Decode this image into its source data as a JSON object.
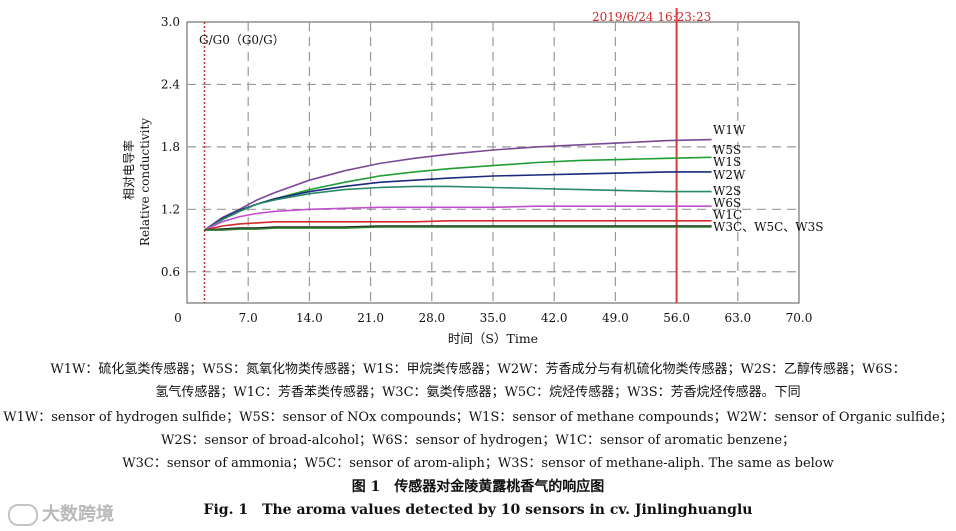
{
  "chart_data": {
    "type": "line",
    "timestamp": "2019/6/24 16:23:23",
    "y_corner_label": "G/G0（G0/G）",
    "ylabel_cn": "相对电导率",
    "ylabel_en": "Relative conductivity",
    "xlabel": "时间（S）Time",
    "xlim": [
      0,
      70
    ],
    "ylim": [
      0.3,
      3.0
    ],
    "x_ticks": [
      "7.0",
      "14.0",
      "21.0",
      "28.0",
      "35.0",
      "42.0",
      "49.0",
      "56.0",
      "63.0",
      "70.0"
    ],
    "y_ticks": [
      "0.6",
      "1.2",
      "1.8",
      "2.4",
      "3.0"
    ],
    "origin_label": "0",
    "grid": true,
    "marker_line_x": 56,
    "start_line_x": 2,
    "x": [
      2,
      4,
      6,
      8,
      10,
      14,
      18,
      22,
      26,
      30,
      35,
      40,
      45,
      50,
      55,
      60
    ],
    "series": [
      {
        "name": "W1W",
        "color": "#7b4a96",
        "values": [
          1.0,
          1.12,
          1.2,
          1.29,
          1.36,
          1.48,
          1.57,
          1.64,
          1.69,
          1.73,
          1.77,
          1.8,
          1.82,
          1.84,
          1.86,
          1.87
        ]
      },
      {
        "name": "W5S",
        "color": "#1f9e33",
        "values": [
          1.0,
          1.1,
          1.18,
          1.25,
          1.3,
          1.39,
          1.46,
          1.52,
          1.56,
          1.59,
          1.62,
          1.65,
          1.67,
          1.68,
          1.69,
          1.7
        ]
      },
      {
        "name": "W1S",
        "color": "#1c2a7d",
        "values": [
          1.0,
          1.11,
          1.19,
          1.25,
          1.3,
          1.37,
          1.42,
          1.46,
          1.48,
          1.5,
          1.52,
          1.53,
          1.54,
          1.55,
          1.56,
          1.56
        ]
      },
      {
        "name": "W2W",
        "color": "#2a8a68",
        "values": [
          1.0,
          1.1,
          1.18,
          1.25,
          1.29,
          1.35,
          1.39,
          1.41,
          1.42,
          1.42,
          1.41,
          1.4,
          1.39,
          1.38,
          1.37,
          1.37
        ]
      },
      {
        "name": "W2S",
        "color": "#c24fd0",
        "values": [
          1.0,
          1.08,
          1.13,
          1.16,
          1.18,
          1.2,
          1.21,
          1.22,
          1.22,
          1.22,
          1.22,
          1.23,
          1.23,
          1.23,
          1.23,
          1.23
        ]
      },
      {
        "name": "W6S",
        "color": "#d12a2a",
        "values": [
          1.0,
          1.04,
          1.06,
          1.07,
          1.08,
          1.08,
          1.08,
          1.08,
          1.08,
          1.09,
          1.09,
          1.09,
          1.09,
          1.09,
          1.09,
          1.09
        ]
      },
      {
        "name": "W1C",
        "color": "#222222",
        "values": [
          1.0,
          1.01,
          1.02,
          1.02,
          1.03,
          1.03,
          1.03,
          1.04,
          1.04,
          1.04,
          1.04,
          1.04,
          1.04,
          1.04,
          1.04,
          1.04
        ]
      },
      {
        "name": "W3C、W5C、W3S",
        "color": "#2e7d2e",
        "values": [
          1.0,
          1.0,
          1.01,
          1.01,
          1.02,
          1.02,
          1.02,
          1.03,
          1.03,
          1.03,
          1.03,
          1.03,
          1.03,
          1.03,
          1.03,
          1.03
        ]
      }
    ]
  },
  "caption": {
    "cn_line1": "W1W：硫化氢类传感器；W5S：氮氧化物类传感器；W1S：甲烷类传感器；W2W：芳香成分与有机硫化物类传感器；W2S：乙醇传感器；W6S：",
    "cn_line2": "氢气传感器；W1C：芳香苯类传感器；W3C：氨类传感器；W5C：烷烃传感器；W3S：芳香烷烃传感器。下同",
    "en_line1": "W1W：sensor of hydrogen sulfide；W5S：sensor of NOx compounds；W1S：sensor of methane compounds；W2W：sensor of Organic sulfide；",
    "en_line2": "W2S：sensor of broad-alcohol；W6S：sensor of hydrogen；W1C：sensor of aromatic benzene；",
    "en_line3": "W3C：sensor of ammonia；W5C：sensor of arom-aliph；W3S：sensor of methane-aliph. The same as below",
    "fig_cn": "图 1　传感器对金陵黄露桃香气的响应图",
    "fig_en": "Fig. 1　The aroma values detected by 10 sensors in cv. Jinlinghuanglu"
  },
  "watermark": "大数跨境"
}
